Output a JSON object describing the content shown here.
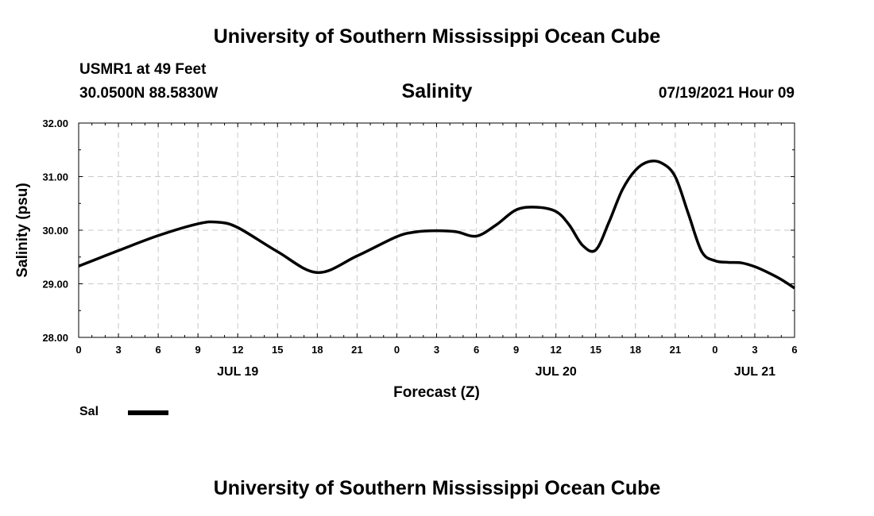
{
  "header": {
    "title": "University of Southern Mississippi Ocean Cube",
    "station": "USMR1 at 49 Feet",
    "coordinates": "30.0500N  88.5830W",
    "parameter": "Salinity",
    "datetime": "07/19/2021 Hour 09"
  },
  "footer": {
    "title": "University of Southern Mississippi Ocean Cube"
  },
  "chart_data": {
    "type": "line",
    "title": "Salinity",
    "xlabel": "Forecast (Z)",
    "ylabel": "Salinity (psu)",
    "xlim": [
      0,
      54
    ],
    "ylim": [
      28.0,
      32.0
    ],
    "y_ticks": [
      "28.00",
      "29.00",
      "30.00",
      "31.00",
      "32.00"
    ],
    "y_tick_values": [
      28.0,
      29.0,
      30.0,
      31.0,
      32.0
    ],
    "x_ticks": [
      0,
      3,
      6,
      9,
      12,
      15,
      18,
      21,
      24,
      27,
      30,
      33,
      36,
      39,
      42,
      45,
      48,
      51,
      54
    ],
    "x_tick_labels": [
      "0",
      "3",
      "6",
      "9",
      "12",
      "15",
      "18",
      "21",
      "0",
      "3",
      "6",
      "9",
      "12",
      "15",
      "18",
      "21",
      "0",
      "3",
      "6"
    ],
    "date_labels": [
      {
        "text": "JUL 19",
        "x": 12
      },
      {
        "text": "JUL 20",
        "x": 36
      },
      {
        "text": "JUL 21",
        "x": 51
      }
    ],
    "grid": true,
    "legend_position": "bottom-left",
    "series": [
      {
        "name": "Sal",
        "x": [
          0,
          3,
          6,
          9,
          10.5,
          12,
          15,
          18,
          21,
          24,
          25.5,
          27,
          28.5,
          30,
          31.5,
          33,
          34.5,
          36,
          37,
          38,
          39,
          40,
          41,
          42,
          43,
          44,
          45,
          46,
          47,
          48,
          49,
          50,
          51,
          52,
          53,
          54
        ],
        "values": [
          29.33,
          29.62,
          29.9,
          30.12,
          30.15,
          30.05,
          29.6,
          29.21,
          29.52,
          29.88,
          29.97,
          29.99,
          29.97,
          29.89,
          30.1,
          30.38,
          30.43,
          30.35,
          30.1,
          29.72,
          29.63,
          30.15,
          30.75,
          31.12,
          31.28,
          31.25,
          31.0,
          30.3,
          29.6,
          29.43,
          29.4,
          29.39,
          29.32,
          29.21,
          29.08,
          28.92
        ]
      }
    ]
  }
}
